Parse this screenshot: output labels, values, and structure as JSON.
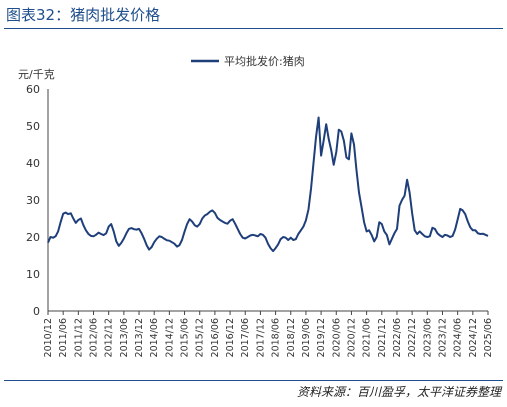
{
  "figure_title": "图表32：猪肉批发价格",
  "source_note": "资料来源：百川盈孚，太平洋证券整理",
  "colors": {
    "line": "#1f3f7a",
    "accent": "#1f4e8c"
  },
  "chart_data": {
    "type": "line",
    "title": "",
    "ylabel": "元/千克",
    "xlabel": "",
    "ylim": [
      0,
      60
    ],
    "yticks": [
      0,
      10,
      20,
      30,
      40,
      50,
      60
    ],
    "xticks": [
      "2010/12",
      "2011/06",
      "2011/12",
      "2012/06",
      "2012/12",
      "2013/06",
      "2013/12",
      "2014/06",
      "2014/12",
      "2015/06",
      "2015/12",
      "2016/06",
      "2016/12",
      "2017/06",
      "2017/12",
      "2018/06",
      "2018/12",
      "2019/06",
      "2019/12",
      "2020/06",
      "2020/12",
      "2021/06",
      "2021/12",
      "2022/06",
      "2022/12",
      "2023/06",
      "2023/12",
      "2024/06",
      "2024/12",
      "2025/06"
    ],
    "xlim": [
      "2010/12",
      "2025/06"
    ],
    "legend_position": "top-center",
    "grid": false,
    "series": [
      {
        "name": "平均批发价:猪肉",
        "points": [
          [
            "2010/12",
            18.5
          ],
          [
            "2011/01",
            20.0
          ],
          [
            "2011/02",
            19.8
          ],
          [
            "2011/03",
            20.2
          ],
          [
            "2011/04",
            21.5
          ],
          [
            "2011/05",
            24.0
          ],
          [
            "2011/06",
            26.3
          ],
          [
            "2011/07",
            26.6
          ],
          [
            "2011/08",
            26.2
          ],
          [
            "2011/09",
            26.4
          ],
          [
            "2011/10",
            25.0
          ],
          [
            "2011/11",
            23.8
          ],
          [
            "2011/12",
            24.6
          ],
          [
            "2012/01",
            25.0
          ],
          [
            "2012/02",
            23.2
          ],
          [
            "2012/03",
            21.8
          ],
          [
            "2012/04",
            20.8
          ],
          [
            "2012/05",
            20.3
          ],
          [
            "2012/06",
            20.2
          ],
          [
            "2012/07",
            20.6
          ],
          [
            "2012/08",
            21.2
          ],
          [
            "2012/09",
            20.8
          ],
          [
            "2012/10",
            20.5
          ],
          [
            "2012/11",
            21.0
          ],
          [
            "2012/12",
            22.8
          ],
          [
            "2013/01",
            23.5
          ],
          [
            "2013/02",
            21.5
          ],
          [
            "2013/03",
            18.8
          ],
          [
            "2013/04",
            17.6
          ],
          [
            "2013/05",
            18.4
          ],
          [
            "2013/06",
            19.6
          ],
          [
            "2013/07",
            21.0
          ],
          [
            "2013/08",
            22.2
          ],
          [
            "2013/09",
            22.4
          ],
          [
            "2013/10",
            22.1
          ],
          [
            "2013/11",
            22.0
          ],
          [
            "2013/12",
            22.2
          ],
          [
            "2014/01",
            21.0
          ],
          [
            "2014/02",
            19.5
          ],
          [
            "2014/03",
            17.8
          ],
          [
            "2014/04",
            16.6
          ],
          [
            "2014/05",
            17.3
          ],
          [
            "2014/06",
            18.6
          ],
          [
            "2014/07",
            19.5
          ],
          [
            "2014/08",
            20.2
          ],
          [
            "2014/09",
            20.0
          ],
          [
            "2014/10",
            19.5
          ],
          [
            "2014/11",
            19.1
          ],
          [
            "2014/12",
            19.0
          ],
          [
            "2015/01",
            18.6
          ],
          [
            "2015/02",
            18.2
          ],
          [
            "2015/03",
            17.4
          ],
          [
            "2015/04",
            17.8
          ],
          [
            "2015/05",
            19.2
          ],
          [
            "2015/06",
            21.5
          ],
          [
            "2015/07",
            23.5
          ],
          [
            "2015/08",
            24.8
          ],
          [
            "2015/09",
            24.2
          ],
          [
            "2015/10",
            23.2
          ],
          [
            "2015/11",
            22.8
          ],
          [
            "2015/12",
            23.5
          ],
          [
            "2016/01",
            25.0
          ],
          [
            "2016/02",
            25.8
          ],
          [
            "2016/03",
            26.2
          ],
          [
            "2016/04",
            26.8
          ],
          [
            "2016/05",
            27.2
          ],
          [
            "2016/06",
            26.5
          ],
          [
            "2016/07",
            25.2
          ],
          [
            "2016/08",
            24.6
          ],
          [
            "2016/09",
            24.2
          ],
          [
            "2016/10",
            23.8
          ],
          [
            "2016/11",
            23.6
          ],
          [
            "2016/12",
            24.4
          ],
          [
            "2017/01",
            24.8
          ],
          [
            "2017/02",
            23.6
          ],
          [
            "2017/03",
            22.2
          ],
          [
            "2017/04",
            20.8
          ],
          [
            "2017/05",
            19.8
          ],
          [
            "2017/06",
            19.6
          ],
          [
            "2017/07",
            20.0
          ],
          [
            "2017/08",
            20.4
          ],
          [
            "2017/09",
            20.6
          ],
          [
            "2017/10",
            20.4
          ],
          [
            "2017/11",
            20.2
          ],
          [
            "2017/12",
            20.8
          ],
          [
            "2018/01",
            20.6
          ],
          [
            "2018/02",
            19.8
          ],
          [
            "2018/03",
            18.2
          ],
          [
            "2018/04",
            17.0
          ],
          [
            "2018/05",
            16.2
          ],
          [
            "2018/06",
            17.0
          ],
          [
            "2018/07",
            18.0
          ],
          [
            "2018/08",
            19.4
          ],
          [
            "2018/09",
            20.0
          ],
          [
            "2018/10",
            19.8
          ],
          [
            "2018/11",
            19.2
          ],
          [
            "2018/12",
            19.8
          ],
          [
            "2019/01",
            19.2
          ],
          [
            "2019/02",
            19.4
          ],
          [
            "2019/03",
            20.8
          ],
          [
            "2019/04",
            21.8
          ],
          [
            "2019/05",
            22.8
          ],
          [
            "2019/06",
            24.5
          ],
          [
            "2019/07",
            27.5
          ],
          [
            "2019/08",
            33.0
          ],
          [
            "2019/09",
            40.0
          ],
          [
            "2019/10",
            47.0
          ],
          [
            "2019/11",
            52.3
          ],
          [
            "2019/12",
            42.0
          ],
          [
            "2020/01",
            46.0
          ],
          [
            "2020/02",
            50.5
          ],
          [
            "2020/03",
            46.5
          ],
          [
            "2020/04",
            43.5
          ],
          [
            "2020/05",
            39.5
          ],
          [
            "2020/06",
            43.0
          ],
          [
            "2020/07",
            49.0
          ],
          [
            "2020/08",
            48.5
          ],
          [
            "2020/09",
            46.0
          ],
          [
            "2020/10",
            41.5
          ],
          [
            "2020/11",
            41.0
          ],
          [
            "2020/12",
            48.0
          ],
          [
            "2021/01",
            45.0
          ],
          [
            "2021/02",
            38.0
          ],
          [
            "2021/03",
            32.0
          ],
          [
            "2021/04",
            28.0
          ],
          [
            "2021/05",
            24.0
          ],
          [
            "2021/06",
            21.5
          ],
          [
            "2021/07",
            21.8
          ],
          [
            "2021/08",
            20.5
          ],
          [
            "2021/09",
            18.8
          ],
          [
            "2021/10",
            20.0
          ],
          [
            "2021/11",
            24.0
          ],
          [
            "2021/12",
            23.5
          ],
          [
            "2022/01",
            21.5
          ],
          [
            "2022/02",
            20.5
          ],
          [
            "2022/03",
            18.0
          ],
          [
            "2022/04",
            19.5
          ],
          [
            "2022/05",
            21.0
          ],
          [
            "2022/06",
            22.2
          ],
          [
            "2022/07",
            28.5
          ],
          [
            "2022/08",
            30.0
          ],
          [
            "2022/09",
            31.2
          ],
          [
            "2022/10",
            35.5
          ],
          [
            "2022/11",
            32.0
          ],
          [
            "2022/12",
            26.5
          ],
          [
            "2023/01",
            21.8
          ],
          [
            "2023/02",
            20.8
          ],
          [
            "2023/03",
            21.5
          ],
          [
            "2023/04",
            20.8
          ],
          [
            "2023/05",
            20.2
          ],
          [
            "2023/06",
            20.0
          ],
          [
            "2023/07",
            20.2
          ],
          [
            "2023/08",
            22.5
          ],
          [
            "2023/09",
            22.2
          ],
          [
            "2023/10",
            21.0
          ],
          [
            "2023/11",
            20.4
          ],
          [
            "2023/12",
            20.0
          ],
          [
            "2024/01",
            20.6
          ],
          [
            "2024/02",
            20.4
          ],
          [
            "2024/03",
            20.0
          ],
          [
            "2024/04",
            20.3
          ],
          [
            "2024/05",
            22.0
          ],
          [
            "2024/06",
            24.8
          ],
          [
            "2024/07",
            27.6
          ],
          [
            "2024/08",
            27.2
          ],
          [
            "2024/09",
            26.2
          ],
          [
            "2024/10",
            24.2
          ],
          [
            "2024/11",
            22.6
          ],
          [
            "2024/12",
            21.8
          ],
          [
            "2025/01",
            21.8
          ],
          [
            "2025/02",
            21.0
          ],
          [
            "2025/03",
            20.8
          ],
          [
            "2025/04",
            20.9
          ],
          [
            "2025/05",
            20.6
          ],
          [
            "2025/06",
            20.3
          ]
        ]
      }
    ]
  }
}
